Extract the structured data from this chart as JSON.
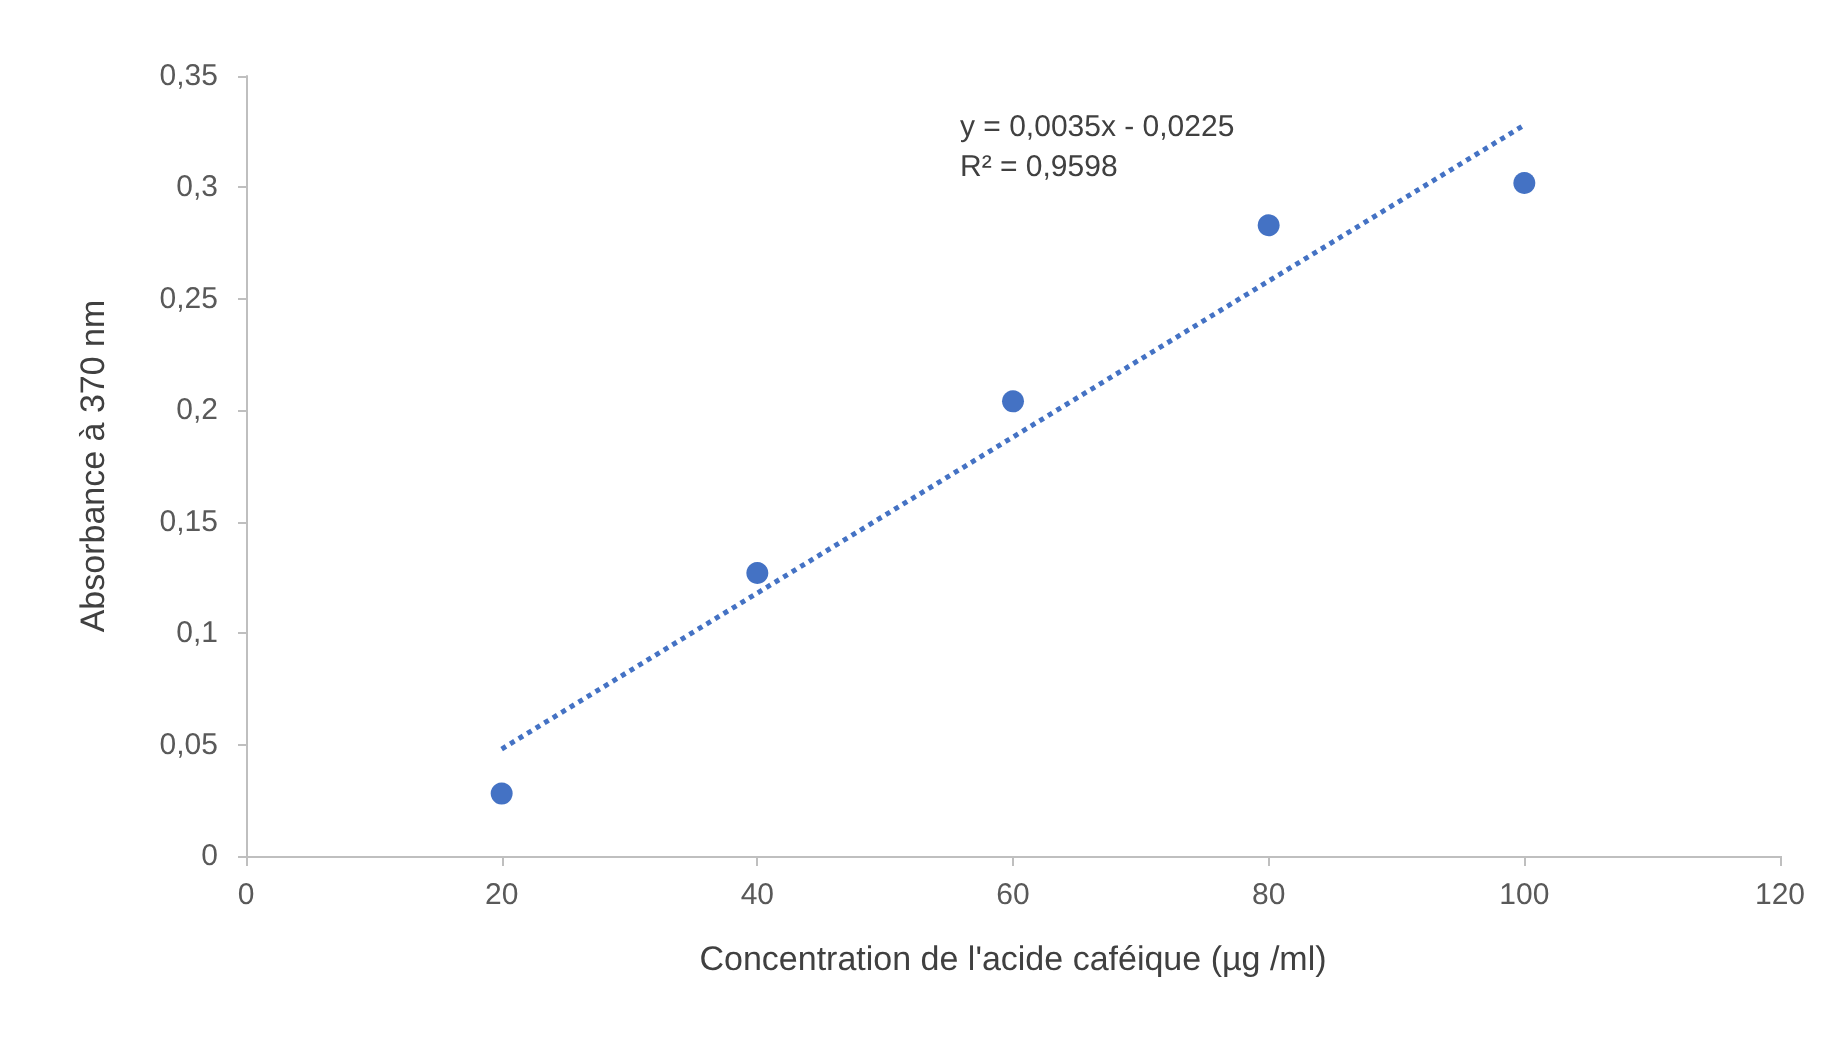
{
  "chart_data": {
    "type": "scatter",
    "xlabel": "Concentration de l'acide caféique (µg /ml)",
    "ylabel": "Absorbance à 370 nm",
    "annotations": [
      "y = 0,0035x - 0,0225",
      "R² = 0,9598"
    ],
    "series": [
      {
        "color": "#4472c4",
        "marker": "circle",
        "x": [
          20,
          40,
          60,
          80,
          100
        ],
        "values": [
          0.028,
          0.127,
          0.204,
          0.283,
          0.302
        ]
      },
      {
        "type": "line",
        "color": "#4472c4",
        "marker": "none",
        "line_style": "dotted",
        "x": [
          20,
          100
        ],
        "values": [
          0.048,
          0.328
        ]
      }
    ],
    "xlim": [
      0,
      120
    ],
    "xticks": [
      0,
      20,
      40,
      60,
      80,
      100,
      120
    ],
    "ylim": [
      0,
      0.35
    ],
    "yticks": [
      {
        "value": 0,
        "label": "0"
      },
      {
        "value": 0.05,
        "label": "0,05"
      },
      {
        "value": 0.1,
        "label": "0,1"
      },
      {
        "value": 0.15,
        "label": "0,15"
      },
      {
        "value": 0.2,
        "label": "0,2"
      },
      {
        "value": 0.25,
        "label": "0,25"
      },
      {
        "value": 0.3,
        "label": "0,3"
      },
      {
        "value": 0.35,
        "label": "0,35"
      }
    ],
    "grid": false
  }
}
